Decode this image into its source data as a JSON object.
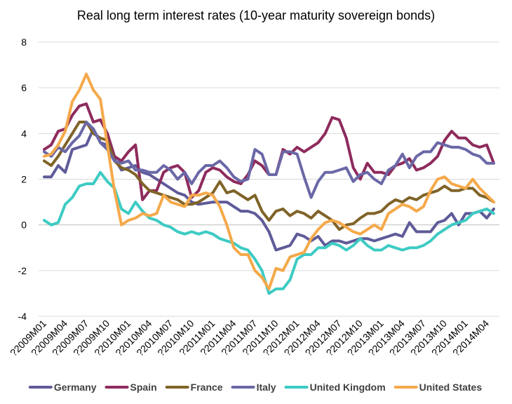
{
  "chart_data": {
    "type": "line",
    "title": "Real long term interest rates (10-year maturity sovereign bonds)",
    "xlabel": "",
    "ylabel": "",
    "ylim": [
      -4,
      8
    ],
    "yticks": [
      -4,
      -2,
      0,
      2,
      4,
      6,
      8
    ],
    "ytick_labels": [
      "-4",
      "-2",
      "0",
      "2",
      "4",
      "6",
      "8"
    ],
    "x": [
      "2009M01",
      "2009M02",
      "2009M03",
      "2009M04",
      "2009M05",
      "2009M06",
      "2009M07",
      "2009M08",
      "2009M09",
      "2009M10",
      "2009M11",
      "2009M12",
      "2010M01",
      "2010M02",
      "2010M03",
      "2010M04",
      "2010M05",
      "2010M06",
      "2010M07",
      "2010M08",
      "2010M09",
      "2010M10",
      "2010M11",
      "2010M12",
      "2011M01",
      "2011M02",
      "2011M03",
      "2011M04",
      "2011M05",
      "2011M06",
      "2011M07",
      "2011M08",
      "2011M09",
      "2011M10",
      "2011M11",
      "2011M12",
      "2012M01",
      "2012M02",
      "2012M03",
      "2012M04",
      "2012M05",
      "2012M06",
      "2012M07",
      "2012M08",
      "2012M09",
      "2012M10",
      "2012M11",
      "2012M12",
      "2013M01",
      "2013M02",
      "2013M03",
      "2013M04",
      "2013M05",
      "2013M06",
      "2013M07",
      "2013M08",
      "2013M09",
      "2013M10",
      "2013M11",
      "2013M12",
      "2014M01",
      "2014M02",
      "2014M03",
      "2014M04",
      "2014M05"
    ],
    "xtick_labels": [
      "?2009M01",
      "?2009M04",
      "?2009M07",
      "?2009M10",
      "?2010M01",
      "?2010M04",
      "?2010M07",
      "?2010M10",
      "?2011M01",
      "?2011M04",
      "?2011M07",
      "?2011M10",
      "?2012M01",
      "?2012M04",
      "?2012M07",
      "?2012M10",
      "?2013M01",
      "?2013M04",
      "?2013M07",
      "?2013M10",
      "?2014M01",
      "?2014M04"
    ],
    "legend_position": "bottom",
    "grid": true,
    "series": [
      {
        "name": "Germany",
        "color": "#5f5b99",
        "values": [
          2.1,
          2.1,
          2.6,
          2.3,
          3.3,
          3.4,
          3.5,
          4.2,
          3.6,
          3.5,
          2.9,
          2.4,
          2.5,
          2.6,
          2.3,
          2.2,
          2.0,
          1.8,
          1.6,
          1.4,
          1.3,
          1.0,
          0.9,
          0.95,
          1.0,
          1.0,
          1.0,
          0.8,
          0.6,
          0.6,
          0.5,
          0.2,
          -0.3,
          -1.1,
          -1.0,
          -0.9,
          -0.4,
          -0.5,
          -0.7,
          -0.5,
          -0.9,
          -0.7,
          -0.7,
          -0.8,
          -0.7,
          -0.6,
          -0.6,
          -0.7,
          -0.6,
          -0.5,
          -0.4,
          -0.5,
          0.1,
          -0.3,
          -0.3,
          -0.3,
          0.1,
          0.2,
          0.5,
          0.0,
          0.5,
          0.5,
          0.6,
          0.3,
          0.7
        ]
      },
      {
        "name": "Spain",
        "color": "#8e2b5d",
        "values": [
          3.3,
          3.5,
          4.1,
          4.2,
          4.8,
          5.2,
          5.3,
          4.5,
          4.6,
          4.0,
          3.0,
          2.8,
          3.2,
          3.5,
          1.1,
          1.5,
          1.5,
          2.3,
          2.5,
          2.6,
          2.3,
          1.2,
          1.5,
          2.3,
          2.5,
          2.4,
          2.1,
          1.9,
          1.8,
          2.2,
          2.8,
          2.6,
          2.2,
          2.2,
          3.3,
          3.1,
          3.4,
          3.2,
          3.4,
          3.6,
          4.0,
          4.7,
          4.6,
          3.8,
          2.5,
          2.0,
          2.7,
          2.3,
          2.3,
          2.2,
          2.6,
          2.7,
          2.9,
          2.4,
          2.5,
          2.7,
          3.0,
          3.7,
          4.1,
          3.8,
          3.8,
          3.5,
          3.4,
          3.5,
          2.7
        ]
      },
      {
        "name": "France",
        "color": "#7f6328",
        "values": [
          2.8,
          2.6,
          3.0,
          3.5,
          4.0,
          4.5,
          4.5,
          4.0,
          3.8,
          3.7,
          2.8,
          2.5,
          2.4,
          2.2,
          1.8,
          1.5,
          1.4,
          1.3,
          1.2,
          1.1,
          0.9,
          0.9,
          1.0,
          1.2,
          1.4,
          1.9,
          1.4,
          1.5,
          1.3,
          1.1,
          1.3,
          0.6,
          0.2,
          0.6,
          0.7,
          0.4,
          0.6,
          0.5,
          0.3,
          0.6,
          0.4,
          0.2,
          -0.2,
          0.0,
          0.05,
          0.3,
          0.5,
          0.5,
          0.6,
          0.9,
          1.1,
          1.0,
          1.2,
          1.1,
          1.3,
          1.4,
          1.5,
          1.7,
          1.5,
          1.5,
          1.6,
          1.6,
          1.3,
          1.2,
          1.0
        ]
      },
      {
        "name": "Italy",
        "color": "#6a68a7",
        "values": [
          3.2,
          3.0,
          3.4,
          3.2,
          3.6,
          3.9,
          4.5,
          4.2,
          3.6,
          3.3,
          2.8,
          2.7,
          2.8,
          2.4,
          2.4,
          2.3,
          2.3,
          2.6,
          2.4,
          2.0,
          2.3,
          1.8,
          2.3,
          2.6,
          2.6,
          2.8,
          2.5,
          2.1,
          1.9,
          2.0,
          3.3,
          3.1,
          2.2,
          2.2,
          3.2,
          3.2,
          3.1,
          2.1,
          1.2,
          1.9,
          2.3,
          2.3,
          2.4,
          2.5,
          1.9,
          2.2,
          2.3,
          2.0,
          1.8,
          2.4,
          2.6,
          3.1,
          2.5,
          3.0,
          3.2,
          3.2,
          3.6,
          3.5,
          3.4,
          3.4,
          3.3,
          3.1,
          3.0,
          2.7,
          2.7
        ]
      },
      {
        "name": "United Kingdom",
        "color": "#3dcbc3",
        "values": [
          0.2,
          0.0,
          0.1,
          0.9,
          1.2,
          1.7,
          1.8,
          1.8,
          2.3,
          1.9,
          1.6,
          0.7,
          0.5,
          1.0,
          0.6,
          0.3,
          0.2,
          0.0,
          -0.1,
          -0.3,
          -0.4,
          -0.3,
          -0.4,
          -0.3,
          -0.4,
          -0.6,
          -0.7,
          -0.8,
          -1.0,
          -1.1,
          -1.5,
          -2.0,
          -3.0,
          -2.8,
          -2.8,
          -2.4,
          -1.5,
          -1.3,
          -1.3,
          -1.0,
          -1.0,
          -0.8,
          -0.9,
          -1.1,
          -0.9,
          -0.6,
          -0.9,
          -1.1,
          -1.1,
          -0.9,
          -1.0,
          -1.1,
          -1.0,
          -1.0,
          -0.9,
          -0.7,
          -0.4,
          -0.2,
          0.0,
          0.1,
          0.2,
          0.5,
          0.6,
          0.7,
          0.5
        ]
      },
      {
        "name": "United States",
        "color": "#f5a94a",
        "values": [
          3.0,
          3.1,
          3.5,
          4.1,
          5.4,
          5.9,
          6.6,
          5.9,
          5.5,
          3.5,
          1.5,
          0.0,
          0.2,
          0.3,
          0.5,
          0.4,
          0.5,
          1.3,
          1.0,
          0.9,
          0.8,
          1.3,
          1.3,
          1.4,
          1.3,
          0.8,
          0.0,
          -1.0,
          -1.3,
          -1.3,
          -2.0,
          -2.3,
          -2.8,
          -1.9,
          -2.0,
          -1.4,
          -1.3,
          -1.2,
          -0.6,
          -0.2,
          0.1,
          0.2,
          0.1,
          -0.1,
          -0.3,
          -0.4,
          -0.2,
          0.0,
          -0.2,
          0.5,
          0.7,
          0.9,
          0.8,
          0.6,
          0.8,
          1.5,
          2.0,
          2.1,
          1.8,
          1.7,
          1.6,
          2.0,
          1.6,
          1.3,
          1.0
        ]
      }
    ]
  }
}
